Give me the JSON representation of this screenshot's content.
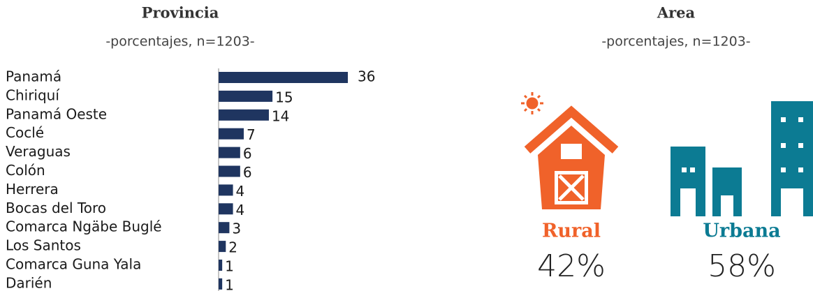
{
  "chart_data": [
    {
      "type": "hbar",
      "title": "Provincia",
      "subtitle": "-porcentajes, n=1203-",
      "categories": [
        "Panamá",
        "Chiriquí",
        "Panamá Oeste",
        "Coclé",
        "Veraguas",
        "Colón",
        "Herrera",
        "Bocas del Toro",
        "Comarca Ngäbe Buglé",
        "Los Santos",
        "Comarca Guna Yala",
        "Darién"
      ],
      "values": [
        36,
        15,
        14,
        7,
        6,
        6,
        4,
        4,
        3,
        2,
        1,
        1
      ],
      "color": "#1f3560"
    },
    {
      "type": "icons",
      "title": "Area",
      "subtitle": "-porcentajes, n=1203-",
      "categories": [
        "Rural",
        "Urbana"
      ],
      "values": [
        42,
        58
      ],
      "value_labels": [
        "42%",
        "58%"
      ],
      "colors": [
        "#f0622a",
        "#0c7b93"
      ]
    }
  ]
}
